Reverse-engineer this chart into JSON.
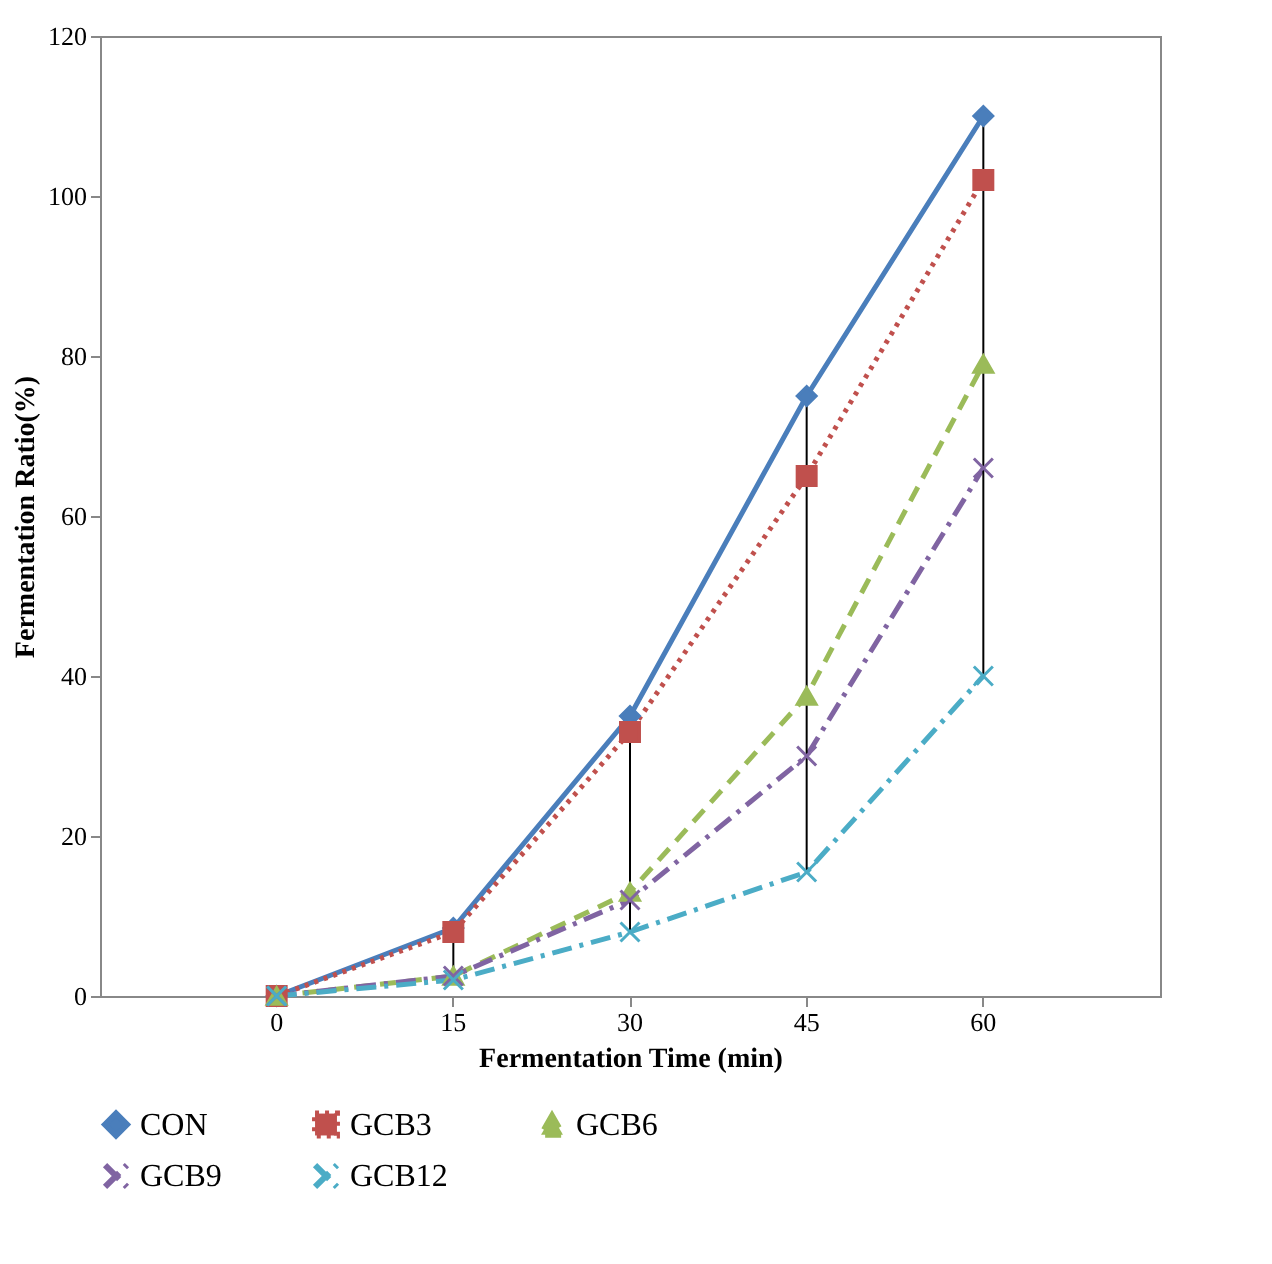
{
  "chart_data": {
    "type": "line",
    "xlabel": "Fermentation Time (min)",
    "ylabel": "Fermentation Ratio(%)",
    "categories": [
      "0",
      "15",
      "30",
      "45",
      "60"
    ],
    "ylim": [
      0,
      120
    ],
    "yticks": [
      0,
      20,
      40,
      60,
      80,
      100,
      120
    ],
    "grid": false,
    "legend": "bottom",
    "series": [
      {
        "name": "CON",
        "color": "#4a7ebb",
        "marker": "diamond",
        "line_style": "solid",
        "values": [
          0,
          8.5,
          35,
          75,
          110
        ]
      },
      {
        "name": "GCB3",
        "color": "#c0504d",
        "marker": "square",
        "line_style": "dotted",
        "values": [
          0,
          8,
          33,
          65,
          102
        ]
      },
      {
        "name": "GCB6",
        "color": "#9bbb59",
        "marker": "triangle",
        "line_style": "dashed",
        "values": [
          0,
          2.5,
          13,
          37.5,
          79
        ]
      },
      {
        "name": "GCB9",
        "color": "#8064a2",
        "marker": "cross",
        "line_style": "dashdot",
        "values": [
          0,
          2.5,
          12,
          30,
          66
        ]
      },
      {
        "name": "GCB12",
        "color": "#4bacc6",
        "marker": "cross",
        "line_style": "dashdot",
        "values": [
          0,
          2,
          8,
          15.5,
          40
        ]
      }
    ]
  }
}
